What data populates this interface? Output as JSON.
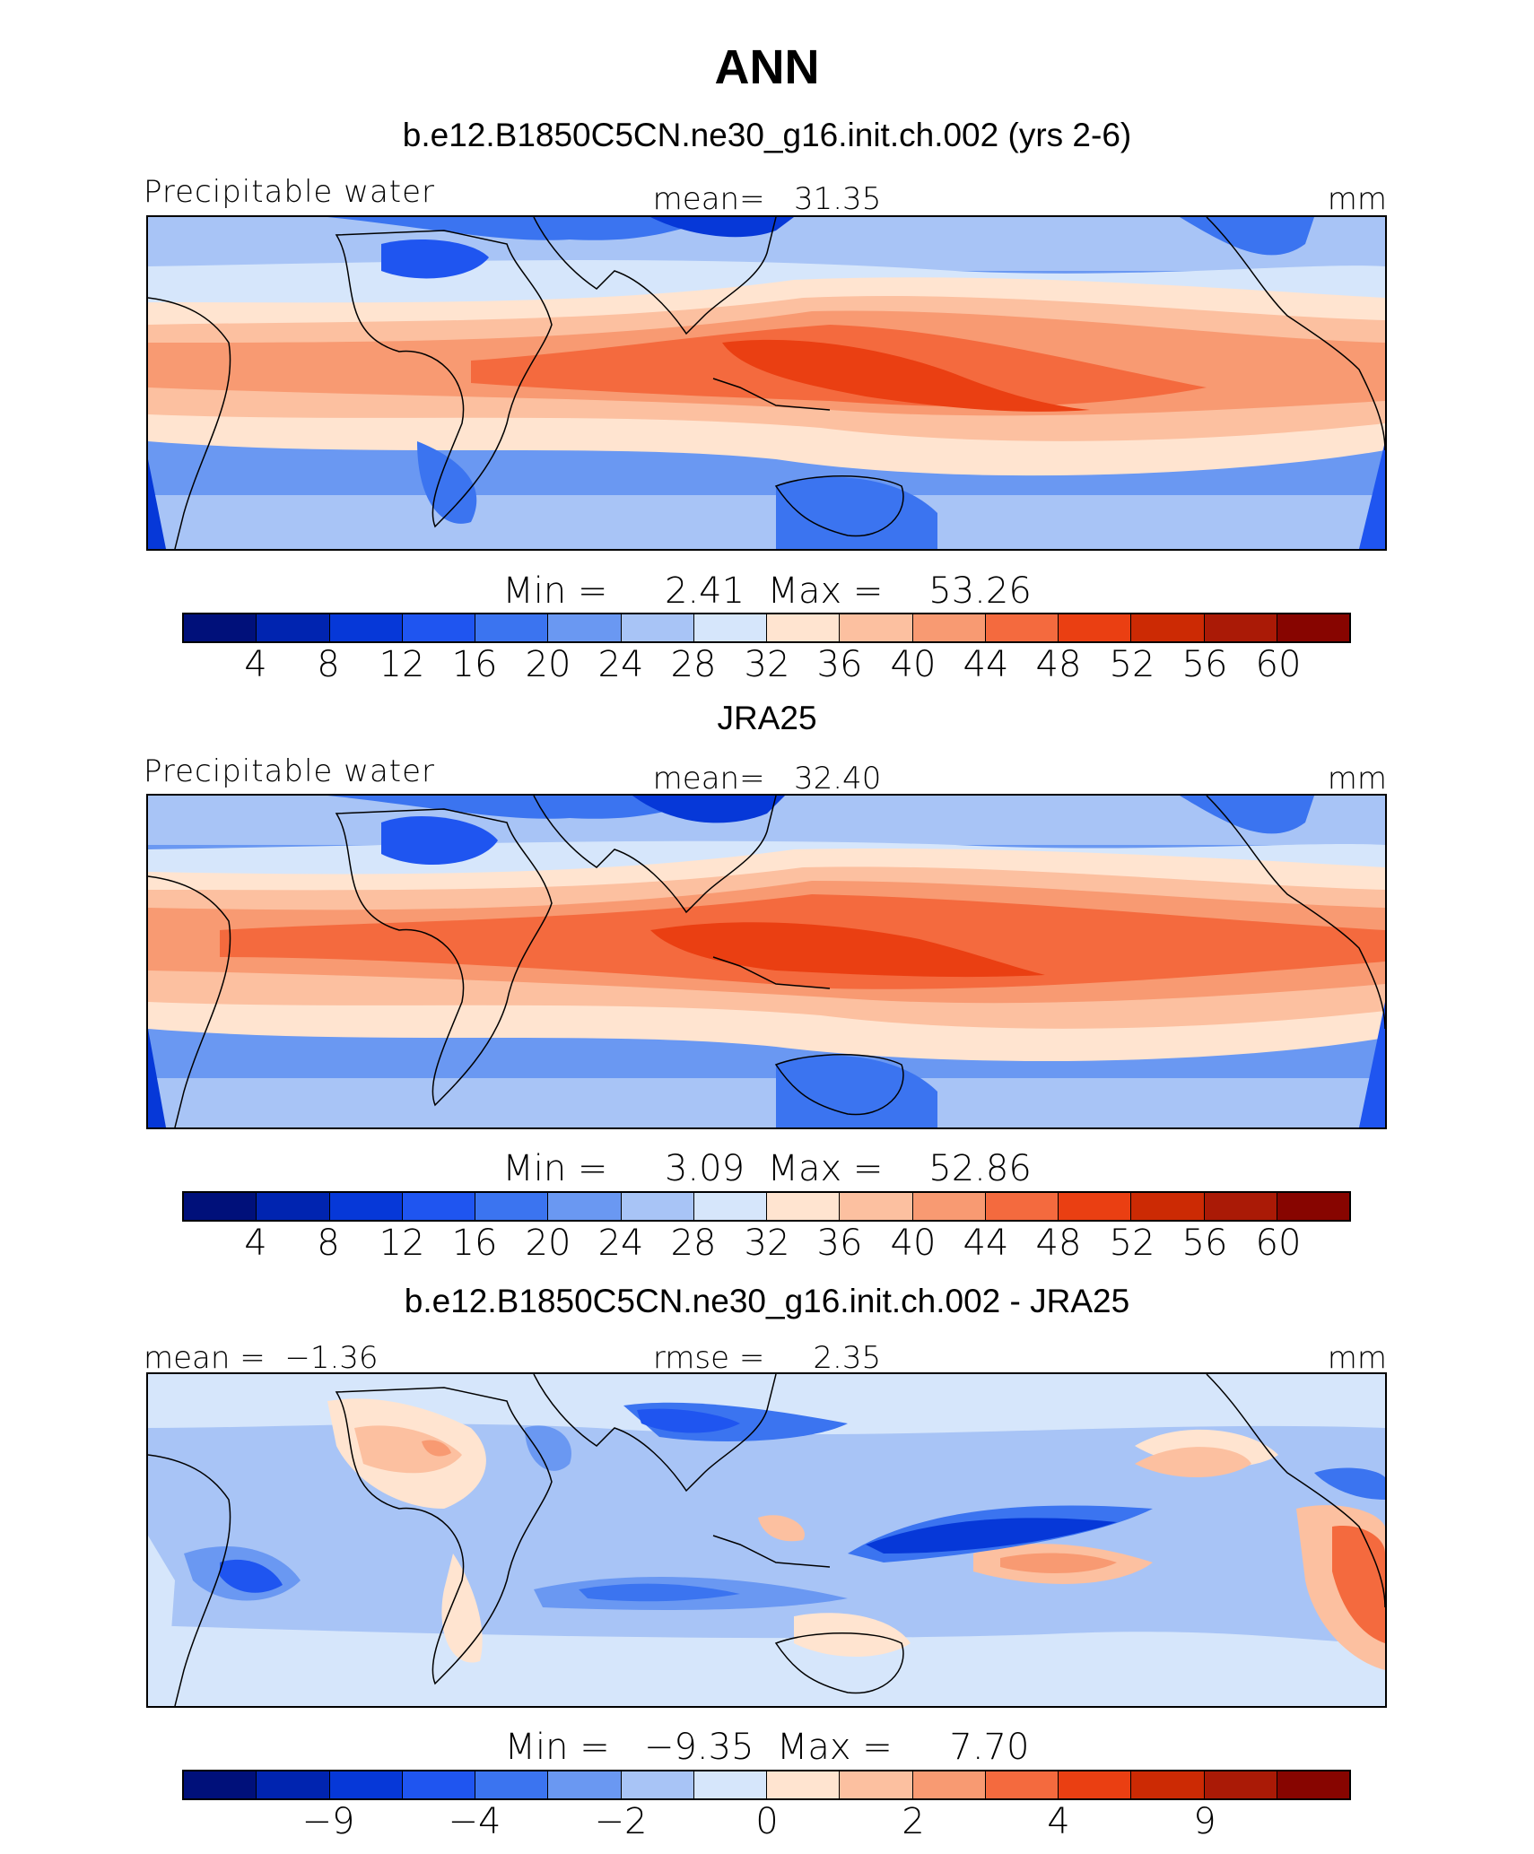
{
  "title": "ANN",
  "panels": [
    {
      "subtitle": "b.e12.B1850C5CN.ne30_g16.init.ch.002 (yrs 2-6)",
      "left_label": "Precipitable water",
      "center_label": "mean=   31.35",
      "units": "mm",
      "minmax": "Min =     2.41  Max =    53.26",
      "ticks": [
        "4",
        "8",
        "12",
        "16",
        "20",
        "24",
        "28",
        "32",
        "36",
        "40",
        "44",
        "48",
        "52",
        "56",
        "60"
      ],
      "map": "model"
    },
    {
      "subtitle": "JRA25",
      "left_label": "Precipitable water",
      "center_label": "mean=   32.40",
      "units": "mm",
      "minmax": "Min =     3.09  Max =    52.86",
      "ticks": [
        "4",
        "8",
        "12",
        "16",
        "20",
        "24",
        "28",
        "32",
        "36",
        "40",
        "44",
        "48",
        "52",
        "56",
        "60"
      ],
      "map": "obs"
    },
    {
      "subtitle": "b.e12.B1850C5CN.ne30_g16.init.ch.002 - JRA25",
      "left_label": "mean =  −1.36",
      "center_label": "rmse =     2.35",
      "units": "mm",
      "minmax": "Min =   −9.35  Max =     7.70",
      "ticks": [
        "−9",
        "−4",
        "−2",
        "0",
        "2",
        "4",
        "9"
      ],
      "map": "diff"
    }
  ],
  "colorbar_colors": [
    "#00107a",
    "#0024b0",
    "#0638d8",
    "#1f55f0",
    "#3b74f0",
    "#6a98f2",
    "#a8c4f6",
    "#d6e6fb",
    "#ffe4d0",
    "#fcc0a0",
    "#f89a72",
    "#f46a3e",
    "#ea3f12",
    "#cc2a04",
    "#aa1a06",
    "#870500"
  ]
}
